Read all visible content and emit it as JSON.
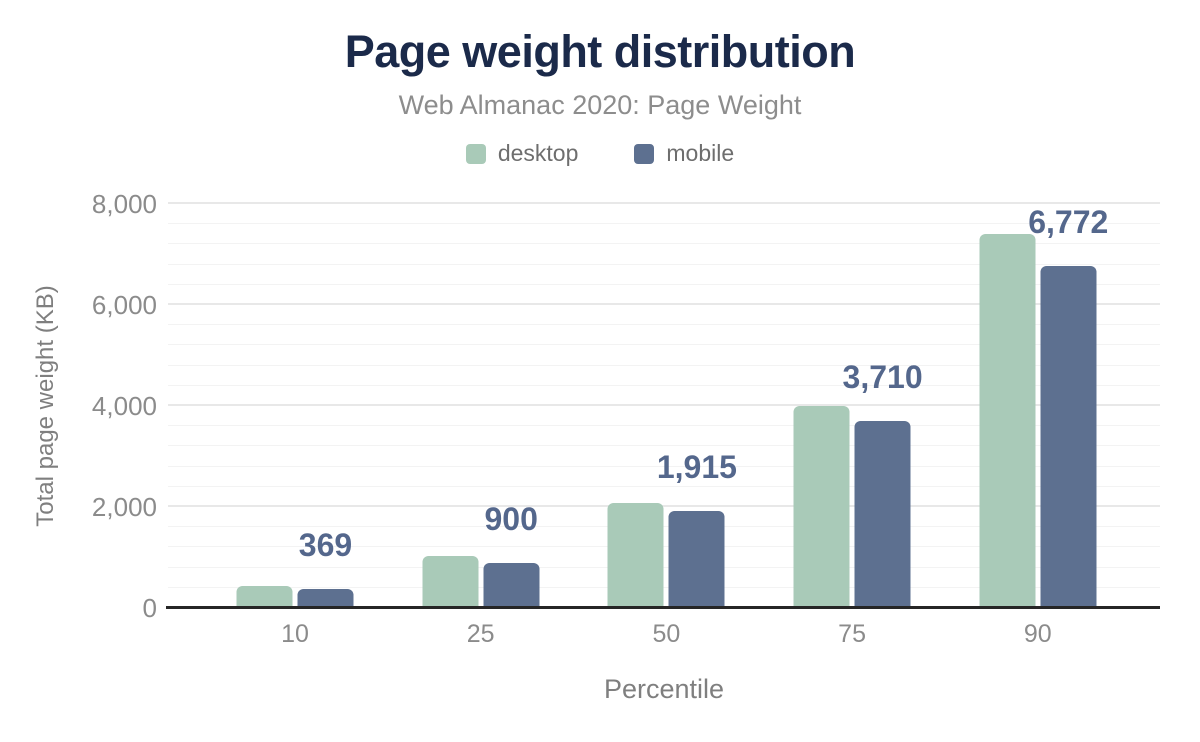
{
  "header": {
    "title": "Page weight distribution",
    "subtitle": "Web Almanac 2020: Page Weight"
  },
  "legend": [
    {
      "label": "desktop",
      "color": "#a9cab8"
    },
    {
      "label": "mobile",
      "color": "#5d7090"
    }
  ],
  "colors": {
    "title": "#1b2a4a",
    "desktop_bar": "#a9cab8",
    "mobile_bar": "#5d7090",
    "value_label": "#54678c",
    "axis_line": "#262626"
  },
  "chart_data": {
    "type": "bar",
    "title": "Page weight distribution",
    "subtitle": "Web Almanac 2020: Page Weight",
    "categories": [
      "10",
      "25",
      "50",
      "75",
      "90"
    ],
    "series": [
      {
        "name": "desktop",
        "color": "#a9cab8",
        "values": [
          440,
          1030,
          2080,
          4000,
          7400
        ],
        "values_estimated_from_gridlines": true
      },
      {
        "name": "mobile",
        "color": "#5d7090",
        "values": [
          369,
          900,
          1915,
          3710,
          6772
        ],
        "data_labels": [
          "369",
          "900",
          "1,915",
          "3,710",
          "6,772"
        ]
      }
    ],
    "xlabel": "Percentile",
    "ylabel": "Total page weight (KB)",
    "ylim": [
      0,
      8000
    ],
    "yticks": [
      0,
      2000,
      4000,
      6000,
      8000
    ],
    "ytick_labels": [
      "0",
      "2,000",
      "4,000",
      "6,000",
      "8,000"
    ],
    "minor_grid_step": 400,
    "grid": true,
    "legend_position": "top",
    "data_labels_series": "mobile"
  }
}
